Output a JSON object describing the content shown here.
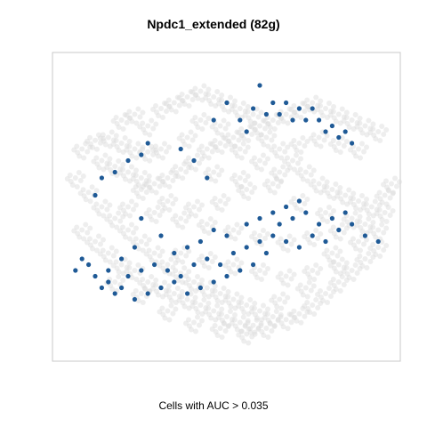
{
  "chart_data": {
    "type": "scatter",
    "title": "Npdc1_extended (82g)",
    "xlabel": "Cells with AUC > 0.035",
    "ylabel": "",
    "grid": false,
    "legend": "none",
    "colors": {
      "background_cells": "#d9d9d9",
      "highlighted_cells": "#1f5a96",
      "panel_border": "#c8c8c8"
    },
    "series": [
      {
        "role": "all_cells",
        "values": [
          [
            10,
            73
          ],
          [
            14,
            74
          ],
          [
            18,
            72
          ],
          [
            22,
            70
          ],
          [
            26,
            69
          ],
          [
            12,
            66
          ],
          [
            16,
            64
          ],
          [
            20,
            62
          ],
          [
            24,
            60
          ],
          [
            28,
            58
          ],
          [
            32,
            60
          ],
          [
            36,
            63
          ],
          [
            40,
            66
          ],
          [
            44,
            70
          ],
          [
            48,
            72
          ],
          [
            52,
            74
          ],
          [
            56,
            76
          ],
          [
            60,
            78
          ],
          [
            64,
            80
          ],
          [
            68,
            82
          ],
          [
            72,
            84
          ],
          [
            76,
            86
          ],
          [
            80,
            84
          ],
          [
            84,
            82
          ],
          [
            88,
            80
          ],
          [
            92,
            78
          ],
          [
            96,
            76
          ],
          [
            30,
            84
          ],
          [
            34,
            86
          ],
          [
            38,
            88
          ],
          [
            42,
            90
          ],
          [
            46,
            88
          ],
          [
            50,
            86
          ],
          [
            54,
            84
          ],
          [
            58,
            82
          ],
          [
            62,
            74
          ],
          [
            66,
            70
          ],
          [
            70,
            66
          ],
          [
            74,
            62
          ],
          [
            78,
            58
          ],
          [
            82,
            56
          ],
          [
            86,
            54
          ],
          [
            90,
            52
          ],
          [
            94,
            50
          ],
          [
            98,
            48
          ],
          [
            8,
            55
          ],
          [
            12,
            50
          ],
          [
            16,
            46
          ],
          [
            20,
            42
          ],
          [
            24,
            38
          ],
          [
            28,
            34
          ],
          [
            32,
            30
          ],
          [
            36,
            27
          ],
          [
            40,
            24
          ],
          [
            44,
            22
          ],
          [
            48,
            20
          ],
          [
            52,
            18
          ],
          [
            56,
            16
          ],
          [
            60,
            14
          ],
          [
            64,
            12
          ],
          [
            68,
            11
          ],
          [
            72,
            13
          ],
          [
            76,
            16
          ],
          [
            80,
            20
          ],
          [
            84,
            24
          ],
          [
            88,
            28
          ],
          [
            92,
            32
          ],
          [
            96,
            36
          ],
          [
            6,
            42
          ],
          [
            10,
            38
          ],
          [
            14,
            34
          ],
          [
            18,
            30
          ],
          [
            22,
            28
          ],
          [
            26,
            24
          ],
          [
            30,
            22
          ],
          [
            34,
            20
          ],
          [
            38,
            18
          ],
          [
            42,
            16
          ],
          [
            46,
            14
          ],
          [
            50,
            12
          ],
          [
            54,
            10
          ],
          [
            58,
            9
          ],
          [
            62,
            8
          ],
          [
            20,
            50
          ],
          [
            28,
            48
          ],
          [
            36,
            46
          ],
          [
            44,
            44
          ],
          [
            52,
            42
          ],
          [
            60,
            40
          ],
          [
            68,
            38
          ],
          [
            76,
            40
          ],
          [
            84,
            42
          ],
          [
            92,
            44
          ],
          [
            24,
            56
          ],
          [
            32,
            52
          ],
          [
            40,
            50
          ],
          [
            48,
            52
          ],
          [
            56,
            56
          ],
          [
            64,
            58
          ],
          [
            72,
            52
          ],
          [
            80,
            48
          ],
          [
            88,
            46
          ],
          [
            96,
            42
          ],
          [
            18,
            80
          ],
          [
            22,
            82
          ],
          [
            26,
            78
          ],
          [
            42,
            80
          ],
          [
            48,
            78
          ],
          [
            54,
            70
          ],
          [
            60,
            66
          ],
          [
            66,
            62
          ],
          [
            72,
            72
          ],
          [
            78,
            74
          ],
          [
            84,
            72
          ],
          [
            90,
            70
          ],
          [
            36,
            34
          ],
          [
            44,
            32
          ],
          [
            52,
            30
          ],
          [
            60,
            28
          ],
          [
            68,
            26
          ],
          [
            76,
            28
          ],
          [
            84,
            30
          ],
          [
            16,
            24
          ],
          [
            24,
            20
          ],
          [
            32,
            14
          ],
          [
            40,
            10
          ],
          [
            48,
            8
          ],
          [
            56,
            6
          ],
          [
            66,
            18
          ],
          [
            74,
            22
          ],
          [
            82,
            34
          ],
          [
            90,
            38
          ],
          [
            98,
            54
          ],
          [
            4,
            60
          ],
          [
            6,
            70
          ],
          [
            100,
            58
          ],
          [
            30,
            70
          ],
          [
            38,
            74
          ],
          [
            46,
            62
          ],
          [
            54,
            60
          ]
        ]
      },
      {
        "role": "cells_above_threshold",
        "values": [
          [
            60,
            92
          ],
          [
            68,
            86
          ],
          [
            72,
            84
          ],
          [
            74,
            80
          ],
          [
            76,
            84
          ],
          [
            78,
            80
          ],
          [
            80,
            76
          ],
          [
            82,
            78
          ],
          [
            84,
            74
          ],
          [
            86,
            76
          ],
          [
            88,
            72
          ],
          [
            70,
            80
          ],
          [
            66,
            82
          ],
          [
            64,
            86
          ],
          [
            62,
            82
          ],
          [
            58,
            84
          ],
          [
            54,
            80
          ],
          [
            50,
            86
          ],
          [
            46,
            80
          ],
          [
            56,
            76
          ],
          [
            44,
            60
          ],
          [
            40,
            66
          ],
          [
            36,
            70
          ],
          [
            26,
            72
          ],
          [
            24,
            68
          ],
          [
            20,
            66
          ],
          [
            16,
            62
          ],
          [
            12,
            60
          ],
          [
            10,
            54
          ],
          [
            24,
            46
          ],
          [
            30,
            40
          ],
          [
            22,
            36
          ],
          [
            18,
            32
          ],
          [
            14,
            28
          ],
          [
            10,
            26
          ],
          [
            8,
            30
          ],
          [
            6,
            32
          ],
          [
            4,
            28
          ],
          [
            12,
            22
          ],
          [
            16,
            20
          ],
          [
            20,
            26
          ],
          [
            24,
            28
          ],
          [
            28,
            30
          ],
          [
            32,
            28
          ],
          [
            36,
            26
          ],
          [
            40,
            30
          ],
          [
            44,
            32
          ],
          [
            48,
            30
          ],
          [
            52,
            34
          ],
          [
            56,
            36
          ],
          [
            60,
            38
          ],
          [
            64,
            40
          ],
          [
            68,
            38
          ],
          [
            72,
            36
          ],
          [
            76,
            40
          ],
          [
            80,
            38
          ],
          [
            84,
            42
          ],
          [
            88,
            44
          ],
          [
            92,
            40
          ],
          [
            96,
            38
          ],
          [
            66,
            44
          ],
          [
            70,
            46
          ],
          [
            74,
            48
          ],
          [
            78,
            44
          ],
          [
            82,
            46
          ],
          [
            86,
            48
          ],
          [
            62,
            34
          ],
          [
            58,
            30
          ],
          [
            54,
            28
          ],
          [
            50,
            26
          ],
          [
            46,
            24
          ],
          [
            42,
            22
          ],
          [
            38,
            20
          ],
          [
            34,
            24
          ],
          [
            30,
            22
          ],
          [
            26,
            20
          ],
          [
            22,
            18
          ],
          [
            18,
            22
          ],
          [
            14,
            24
          ],
          [
            56,
            44
          ],
          [
            60,
            46
          ],
          [
            64,
            48
          ],
          [
            68,
            50
          ],
          [
            72,
            52
          ],
          [
            50,
            40
          ],
          [
            46,
            42
          ],
          [
            42,
            38
          ],
          [
            38,
            36
          ],
          [
            34,
            34
          ]
        ]
      }
    ]
  }
}
